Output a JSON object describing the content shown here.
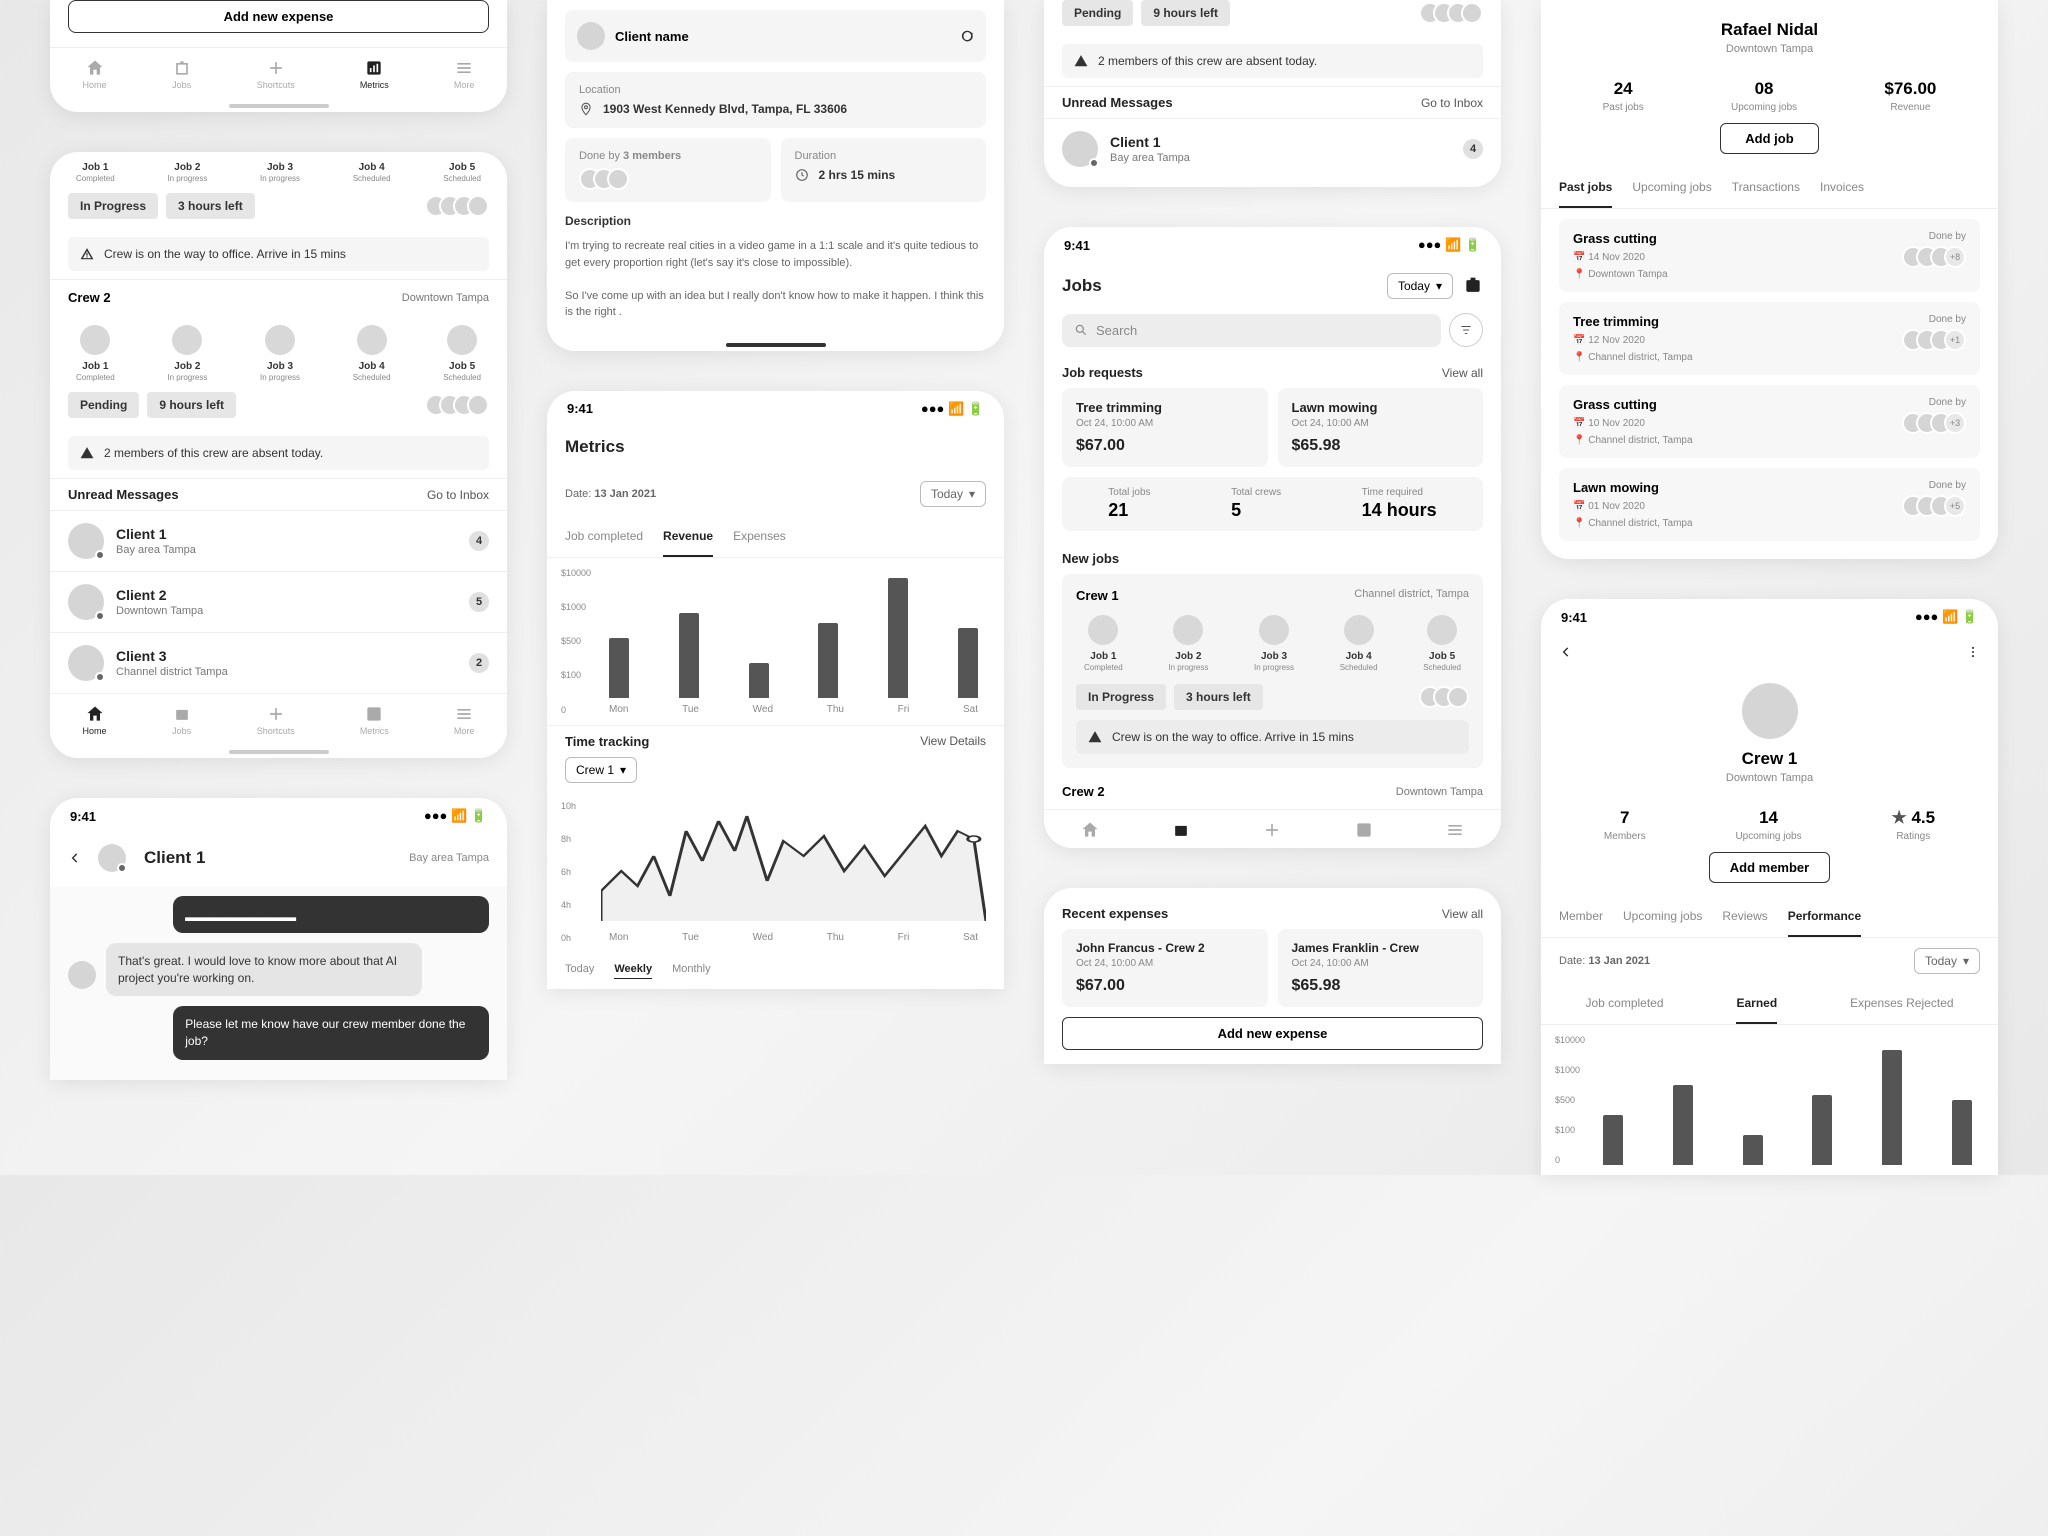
{
  "time": "9:41",
  "add_expense": "Add new expense",
  "nav": {
    "home": "Home",
    "jobs": "Jobs",
    "shortcuts": "Shortcuts",
    "metrics": "Metrics",
    "more": "More"
  },
  "home": {
    "jobs": [
      {
        "n": "Job 1",
        "s": "Completed"
      },
      {
        "n": "Job 2",
        "s": "In progress"
      },
      {
        "n": "Job 3",
        "s": "In progress"
      },
      {
        "n": "Job 4",
        "s": "Scheduled"
      },
      {
        "n": "Job 5",
        "s": "Scheduled"
      }
    ],
    "chip_inprogress": "In Progress",
    "chip_hours3": "3 hours left",
    "warn1": "Crew is on the way to office. Arrive in 15 mins",
    "crew2": "Crew 2",
    "crew2_loc": "Downtown Tampa",
    "chip_pending": "Pending",
    "chip_hours9": "9 hours left",
    "warn2": "2 members of this crew are absent today.",
    "unread": "Unread Messages",
    "inbox": "Go to Inbox",
    "clients": [
      {
        "name": "Client 1",
        "loc": "Bay area Tampa",
        "count": "4"
      },
      {
        "name": "Client 2",
        "loc": "Downtown Tampa",
        "count": "5"
      },
      {
        "name": "Client 3",
        "loc": "Channel district Tampa",
        "count": "2"
      }
    ]
  },
  "chat": {
    "title": "Client 1",
    "loc": "Bay area Tampa",
    "m1": "That's great. I would love to know more about that AI project you're working on.",
    "m2": "Please let me know have our crew member done the job?"
  },
  "detail": {
    "client": "Client name",
    "loc_label": "Location",
    "loc_addr": "1903 West Kennedy Blvd, Tampa, FL 33606",
    "done_by": "Done by",
    "done_count": "3 members",
    "dur_label": "Duration",
    "dur_val": "2 hrs 15 mins",
    "desc_h": "Description",
    "desc1": "I'm trying to recreate real cities in a video game in a 1:1 scale and it's quite tedious to get every proportion right (let's say it's close to impossible).",
    "desc2": "So I've come up with an idea but I really don't know how to make it happen. I think this is the right ."
  },
  "metrics": {
    "title": "Metrics",
    "date_label": "Date:",
    "date": "13 Jan 2021",
    "today": "Today",
    "tab_completed": "Job completed",
    "tab_revenue": "Revenue",
    "tab_expenses": "Expenses",
    "yticks": [
      "$10000",
      "$1000",
      "$500",
      "$100",
      "0"
    ],
    "bars": [
      60,
      85,
      35,
      75,
      120,
      70
    ],
    "days": [
      "Mon",
      "Tue",
      "Wed",
      "Thu",
      "Fri",
      "Sat"
    ],
    "track_h": "Time tracking",
    "view_details": "View Details",
    "crew_sel": "Crew 1",
    "line_y": [
      "10h",
      "8h",
      "6h",
      "4h",
      "0h"
    ],
    "line_points": "0,90 10,70 18,85 26,55 34,95 42,30 50,60 58,20 66,50 72,15 82,80 90,40 100,55 110,35 120,70 130,45 140,75 150,50 160,25 168,55 176,30 184,38",
    "p_today": "Today",
    "p_weekly": "Weekly",
    "p_monthly": "Monthly"
  },
  "jobs": {
    "title": "Jobs",
    "today": "Today",
    "search": "Search",
    "requests": "Job requests",
    "viewall": "View all",
    "req": [
      {
        "t": "Tree trimming",
        "w": "Oct 24, 10:00 AM",
        "p": "$67.00"
      },
      {
        "t": "Lawn mowing",
        "w": "Oct 24, 10:00 AM",
        "p": "$65.98"
      }
    ],
    "s_total": "Total jobs",
    "s_total_v": "21",
    "s_crews": "Total crews",
    "s_crews_v": "5",
    "s_time": "Time required",
    "s_time_v": "14 hours",
    "new": "New jobs",
    "crew1": "Crew 1",
    "crew1_loc": "Channel district, Tampa",
    "crew2": "Crew 2",
    "crew2_loc": "Downtown Tampa",
    "chip_ip": "In Progress",
    "chip_3h": "3 hours left",
    "warn": "Crew is on the way to office. Arrive in 15 mins",
    "pending_chip": "Pending",
    "hours9_chip": "9 hours left",
    "warn_absent": "2 members of this crew are absent today."
  },
  "expenses": {
    "recent": "Recent expenses",
    "viewall": "View all",
    "e": [
      {
        "t": "John Francus - Crew 2",
        "w": "Oct 24, 10:00 AM",
        "p": "$67.00"
      },
      {
        "t": "James Franklin - Crew",
        "w": "Oct 24, 10:00 AM",
        "p": "$65.98"
      }
    ],
    "add": "Add new expense"
  },
  "profile": {
    "name": "Rafael Nidal",
    "loc": "Downtown Tampa",
    "stats": [
      {
        "v": "24",
        "l": "Past jobs"
      },
      {
        "v": "08",
        "l": "Upcoming  jobs"
      },
      {
        "v": "$76.00",
        "l": "Revenue"
      }
    ],
    "add": "Add job",
    "tabs": [
      "Past jobs",
      "Upcoming jobs",
      "Transactions",
      "Invoices"
    ],
    "jobs": [
      {
        "t": "Grass cutting",
        "d": "14 Nov 2020",
        "l": "Downtown Tampa",
        "ex": "+8"
      },
      {
        "t": "Tree trimming",
        "d": "12 Nov 2020",
        "l": "Channel district, Tampa",
        "ex": "+1"
      },
      {
        "t": "Grass cutting",
        "d": "10 Nov 2020",
        "l": "Channel district, Tampa",
        "ex": "+3"
      },
      {
        "t": "Lawn mowing",
        "d": "01 Nov 2020",
        "l": "Channel district, Tampa",
        "ex": "+5"
      }
    ],
    "doneby_label": "Done by"
  },
  "crew": {
    "name": "Crew 1",
    "loc": "Downtown Tampa",
    "stats": [
      {
        "v": "7",
        "l": "Members"
      },
      {
        "v": "14",
        "l": "Upcoming  jobs"
      },
      {
        "v": "4.5",
        "l": "Ratings",
        "star": true
      }
    ],
    "add": "Add member",
    "tabs": [
      "Member",
      "Upcoming jobs",
      "Reviews",
      "Performance"
    ],
    "date_label": "Date:",
    "date": "13 Jan 2021",
    "today": "Today",
    "chart_tabs": [
      "Job completed",
      "Earned",
      "Expenses Rejected"
    ],
    "yticks": [
      "$10000",
      "$1000",
      "$500",
      "$100",
      "0"
    ],
    "bars": [
      50,
      80,
      30,
      70,
      115,
      65
    ]
  },
  "colors": {
    "bar": "#555555",
    "card": "#f5f5f5",
    "text": "#222222",
    "muted": "#888888"
  }
}
